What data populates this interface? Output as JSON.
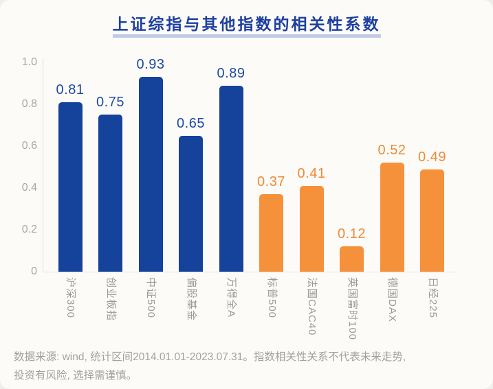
{
  "title": "上证综指与其他指数的相关性系数",
  "colors": {
    "domestic_bar_blue": "#15429B",
    "international_bar_orange": "#F6913B",
    "title_blue": "#1d3f9f",
    "axis_gray": "#a7a6a3"
  },
  "chart_data": {
    "type": "bar",
    "title": "上证综指与其他指数的相关性系数",
    "categories": [
      "沪深300",
      "创业板指",
      "中证500",
      "偏股基金",
      "万得全A",
      "标普500",
      "法国CAC40",
      "英国富时100",
      "德国DAX",
      "日经225"
    ],
    "values": [
      0.81,
      0.75,
      0.93,
      0.65,
      0.89,
      0.37,
      0.41,
      0.12,
      0.52,
      0.49
    ],
    "bar_colors": [
      "#15429B",
      "#15429B",
      "#15429B",
      "#15429B",
      "#15429B",
      "#F6913B",
      "#F6913B",
      "#F6913B",
      "#F6913B",
      "#F6913B"
    ],
    "value_label_colors": [
      "#1d4aa6",
      "#1d4aa6",
      "#1d4aa6",
      "#1d4aa6",
      "#1d4aa6",
      "#ef8a36",
      "#ef8a36",
      "#ef8a36",
      "#ef8a36",
      "#ef8a36"
    ],
    "xlabel": "",
    "ylabel": "",
    "ylim": [
      0,
      1.0
    ],
    "yticks": [
      "1.0",
      "0.8",
      "0.6",
      "0.4",
      "0.2",
      "0"
    ],
    "ytick_values": [
      1.0,
      0.8,
      0.6,
      0.4,
      0.2,
      0
    ],
    "grid": false,
    "legend_shown": false,
    "value_labels_shown": true,
    "x_labels_rotated_90deg": true
  },
  "footer": {
    "line1": "数据来源: wind, 统计区间2014.01.01-2023.07.31。指数相关性关系不代表未来走势,",
    "line2": "投资有风险, 选择需谨慎。"
  }
}
